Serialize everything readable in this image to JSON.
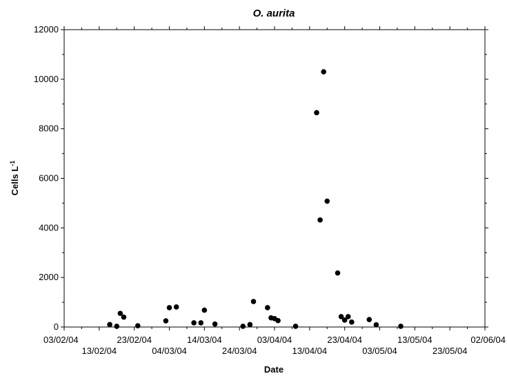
{
  "chart_data": {
    "type": "scatter",
    "title": "O. aurita",
    "xlabel": "Date",
    "ylabel": "Cells L",
    "ylabel_superscript": "-1",
    "xlim": [
      "2004-02-03",
      "2004-06-02"
    ],
    "ylim": [
      0,
      12000
    ],
    "grid": false,
    "legend": "none",
    "marker_color": "#000000",
    "x_ticks": [
      {
        "date": "2004-02-03",
        "label": "03/02/04",
        "row": 0
      },
      {
        "date": "2004-02-13",
        "label": "13/02/04",
        "row": 1
      },
      {
        "date": "2004-02-23",
        "label": "23/02/04",
        "row": 0
      },
      {
        "date": "2004-03-04",
        "label": "04/03/04",
        "row": 1
      },
      {
        "date": "2004-03-14",
        "label": "14/03/04",
        "row": 0
      },
      {
        "date": "2004-03-24",
        "label": "24/03/04",
        "row": 1
      },
      {
        "date": "2004-04-03",
        "label": "03/04/04",
        "row": 0
      },
      {
        "date": "2004-04-13",
        "label": "13/04/04",
        "row": 1
      },
      {
        "date": "2004-04-23",
        "label": "23/04/04",
        "row": 0
      },
      {
        "date": "2004-05-03",
        "label": "03/05/04",
        "row": 1
      },
      {
        "date": "2004-05-13",
        "label": "13/05/04",
        "row": 0
      },
      {
        "date": "2004-05-23",
        "label": "23/05/04",
        "row": 1
      },
      {
        "date": "2004-06-02",
        "label": "02/06/04",
        "row": 0
      }
    ],
    "y_ticks": [
      0,
      2000,
      4000,
      6000,
      8000,
      10000,
      12000
    ],
    "points": [
      {
        "x": "2004-02-16",
        "y": 100
      },
      {
        "x": "2004-02-18",
        "y": 30
      },
      {
        "x": "2004-02-19",
        "y": 550
      },
      {
        "x": "2004-02-20",
        "y": 400
      },
      {
        "x": "2004-02-24",
        "y": 50
      },
      {
        "x": "2004-03-03",
        "y": 250
      },
      {
        "x": "2004-03-04",
        "y": 780
      },
      {
        "x": "2004-03-06",
        "y": 810
      },
      {
        "x": "2004-03-11",
        "y": 170
      },
      {
        "x": "2004-03-13",
        "y": 170
      },
      {
        "x": "2004-03-14",
        "y": 680
      },
      {
        "x": "2004-03-17",
        "y": 120
      },
      {
        "x": "2004-03-25",
        "y": 30
      },
      {
        "x": "2004-03-27",
        "y": 100
      },
      {
        "x": "2004-03-28",
        "y": 1030
      },
      {
        "x": "2004-04-01",
        "y": 780
      },
      {
        "x": "2004-04-02",
        "y": 370
      },
      {
        "x": "2004-04-03",
        "y": 340
      },
      {
        "x": "2004-04-04",
        "y": 260
      },
      {
        "x": "2004-04-09",
        "y": 30
      },
      {
        "x": "2004-04-15",
        "y": 8650
      },
      {
        "x": "2004-04-16",
        "y": 4320
      },
      {
        "x": "2004-04-17",
        "y": 10300
      },
      {
        "x": "2004-04-18",
        "y": 5080
      },
      {
        "x": "2004-04-21",
        "y": 2180
      },
      {
        "x": "2004-04-22",
        "y": 420
      },
      {
        "x": "2004-04-23",
        "y": 280
      },
      {
        "x": "2004-04-24",
        "y": 420
      },
      {
        "x": "2004-04-25",
        "y": 200
      },
      {
        "x": "2004-04-30",
        "y": 300
      },
      {
        "x": "2004-05-02",
        "y": 90
      },
      {
        "x": "2004-05-09",
        "y": 30
      }
    ]
  }
}
